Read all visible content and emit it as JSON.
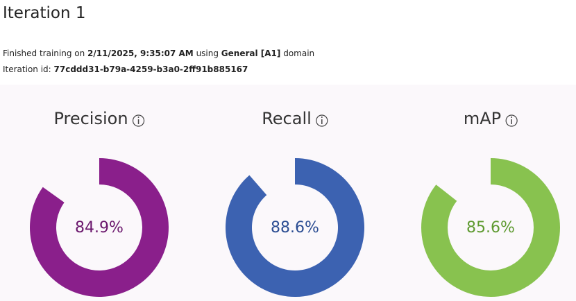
{
  "header": {
    "title": "Iteration 1"
  },
  "info": {
    "line1": [
      "Finished training on ",
      "2/11/2025, 9:35:07 AM",
      " using ",
      "General [A1]",
      " domain"
    ],
    "line2": [
      "Iteration id: ",
      "77cddd31-b79a-4259-b3a0-2ff91b885167"
    ]
  },
  "metrics": [
    {
      "name": "Precision",
      "value": 84.9,
      "value_label": "84.9%",
      "color": "#8a1f8b",
      "label_color": "#6a166c"
    },
    {
      "name": "Recall",
      "value": 88.6,
      "value_label": "88.6%",
      "color": "#3c62b1",
      "label_color": "#2a4c92"
    },
    {
      "name": "mAP",
      "value": 85.6,
      "value_label": "85.6%",
      "color": "#88c24f",
      "label_color": "#5e9a30"
    }
  ],
  "scale_max": 100
}
